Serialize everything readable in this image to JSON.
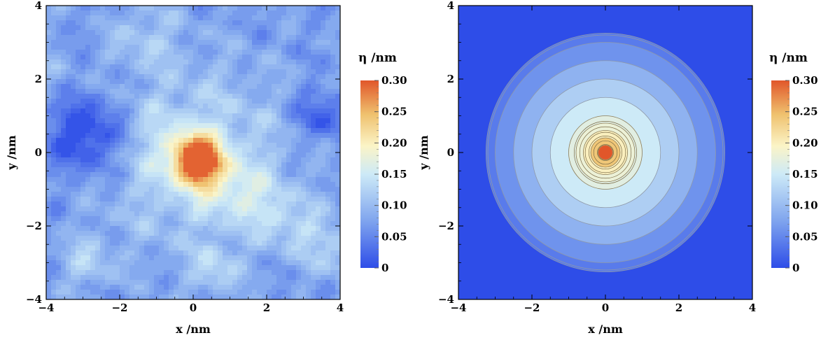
{
  "chart_data": [
    {
      "type": "heatmap",
      "subtype": "contour",
      "title": "",
      "xlabel": "x /nm",
      "ylabel": "y /nm",
      "xlim": [
        -4,
        4
      ],
      "ylim": [
        -4,
        4
      ],
      "x_ticks": [
        -4,
        -2,
        0,
        2,
        4
      ],
      "y_ticks": [
        -4,
        -2,
        0,
        2,
        4
      ],
      "x_tick_labels": [
        "−4",
        "−2",
        "0",
        "2",
        "4"
      ],
      "y_tick_labels": [
        "−4",
        "−2",
        "0",
        "2",
        "4"
      ],
      "colorbar": {
        "title": "η /nm",
        "range": [
          0,
          0.3
        ],
        "ticks": [
          0,
          0.05,
          0.1,
          0.15,
          0.2,
          0.25,
          0.3
        ],
        "tick_labels": [
          "0",
          "0.05",
          "0.10",
          "0.15",
          "0.20",
          "0.25",
          "0.30"
        ]
      },
      "description_values": {
        "peak_location": [
          0.1,
          -0.2
        ],
        "peak_value": 0.3,
        "low_region_center": [
          -2.8,
          0.6
        ],
        "low_region_value": 0.0
      },
      "grid": false
    },
    {
      "type": "heatmap",
      "subtype": "contour",
      "title": "",
      "xlabel": "x /nm",
      "ylabel": "y /nm",
      "xlim": [
        -4,
        4
      ],
      "ylim": [
        -4,
        4
      ],
      "x_ticks": [
        -4,
        -2,
        0,
        2,
        4
      ],
      "y_ticks": [
        -4,
        -2,
        0,
        2,
        4
      ],
      "x_tick_labels": [
        "−4",
        "−2",
        "0",
        "2",
        "4"
      ],
      "y_tick_labels": [
        "−4",
        "−2",
        "0",
        "2",
        "4"
      ],
      "colorbar": {
        "title": "η /nm",
        "range": [
          0,
          0.3
        ],
        "ticks": [
          0,
          0.05,
          0.1,
          0.15,
          0.2,
          0.25,
          0.3
        ],
        "tick_labels": [
          "0",
          "0.05",
          "0.10",
          "0.15",
          "0.20",
          "0.25",
          "0.30"
        ]
      },
      "radial_profile": {
        "r": [
          0,
          0.2,
          0.4,
          0.6,
          0.8,
          1.0,
          1.5,
          2.0,
          2.5,
          3.0,
          3.2,
          3.3
        ],
        "eta": [
          0.3,
          0.29,
          0.24,
          0.2,
          0.18,
          0.17,
          0.15,
          0.12,
          0.09,
          0.06,
          0.04,
          0.0
        ]
      },
      "grid": false
    }
  ],
  "colors": {
    "low": "#2e4de8",
    "mid_low": "#7fa4ee",
    "mid": "#cdeaf7",
    "mid_high": "#fbf4c7",
    "high_mid": "#efc16e",
    "high": "#e1562a"
  }
}
